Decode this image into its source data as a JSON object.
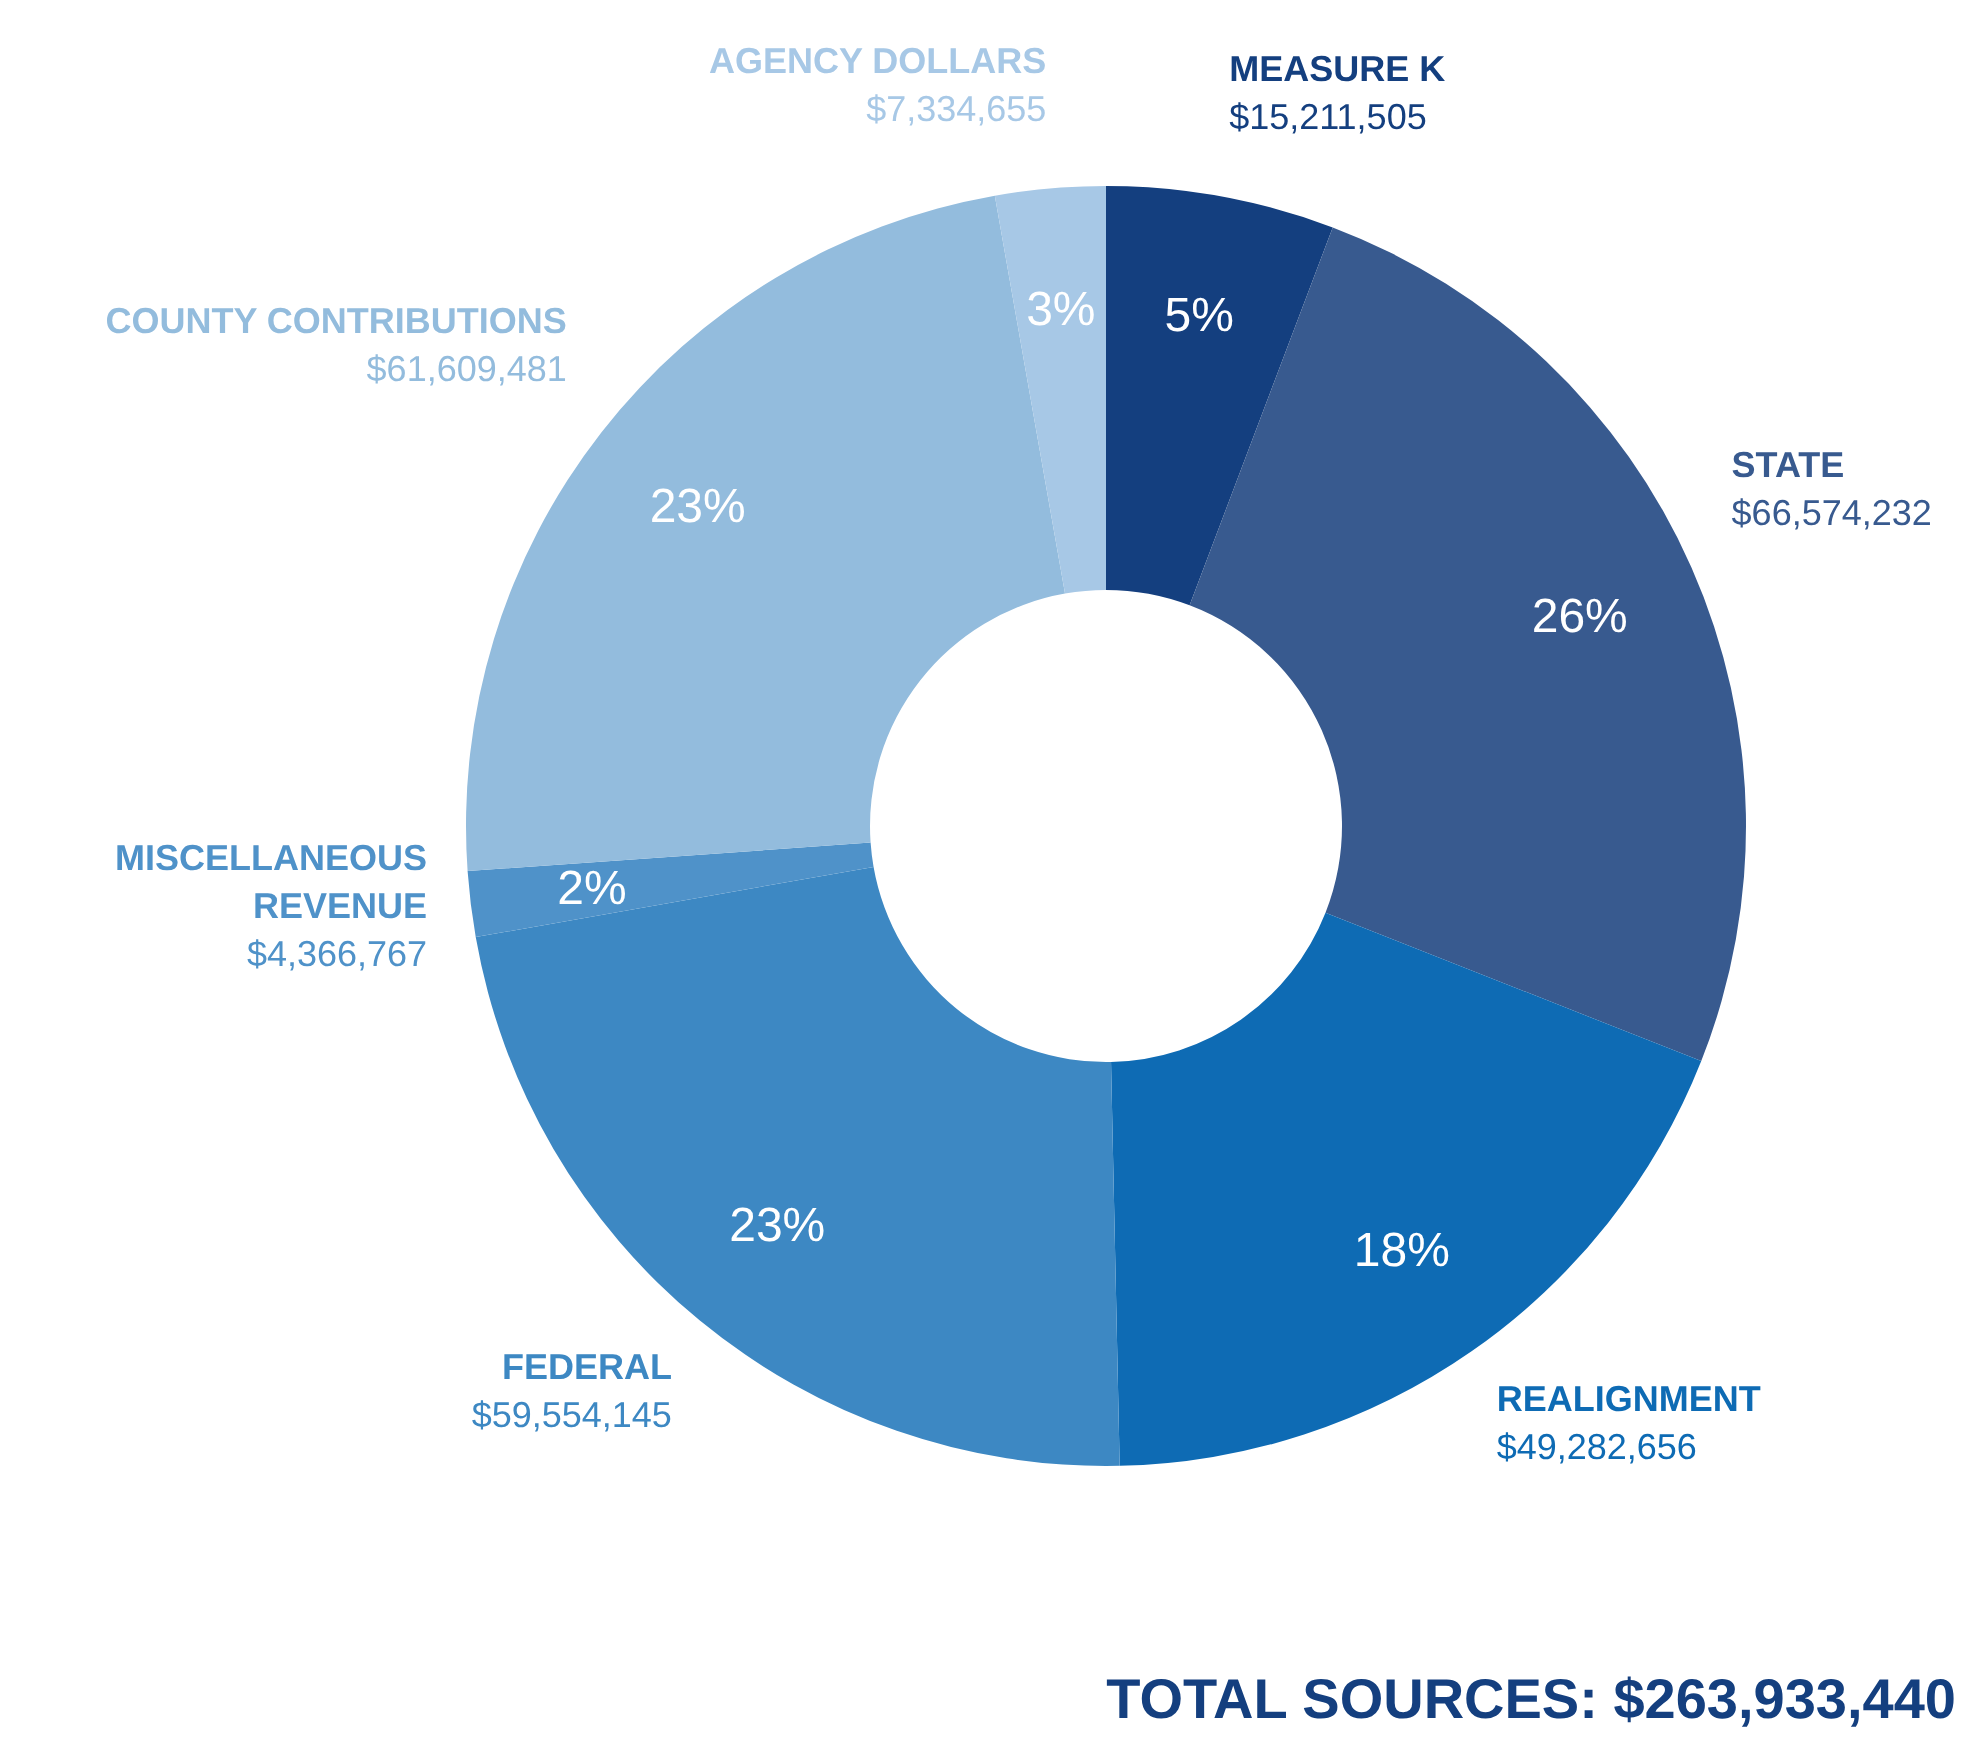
{
  "chart_data": {
    "type": "donut",
    "categories": [
      "MEASURE K",
      "STATE",
      "REALIGNMENT",
      "FEDERAL",
      "MISCELLANEOUS REVENUE",
      "COUNTY CONTRIBUTIONS",
      "AGENCY DOLLARS"
    ],
    "values": [
      15211505,
      66574232,
      49282656,
      59554145,
      4366767,
      61609481,
      7334655
    ],
    "value_labels": [
      "$15,211,505",
      "$66,574,232",
      "$49,282,656",
      "$59,554,145",
      "$4,366,767",
      "$61,609,481",
      "$7,334,655"
    ],
    "colors": [
      "#143f7f",
      "#385a8f",
      "#0e6bb4",
      "#3d88c3",
      "#4f92c9",
      "#93bcdd",
      "#a7c8e6"
    ],
    "annotations": [
      {
        "text": "5%",
        "x": "MEASURE K"
      },
      {
        "text": "26%",
        "x": "STATE"
      },
      {
        "text": "18%",
        "x": "REALIGNMENT"
      },
      {
        "text": "23%",
        "x": "FEDERAL"
      },
      {
        "text": "2%",
        "x": "MISCELLANEOUS REVENUE"
      },
      {
        "text": "23%",
        "x": "COUNTY CONTRIBUTIONS"
      },
      {
        "text": "3%",
        "x": "AGENCY DOLLARS"
      },
      "TOTAL SOURCES: $263,933,440"
    ],
    "legend": false
  }
}
